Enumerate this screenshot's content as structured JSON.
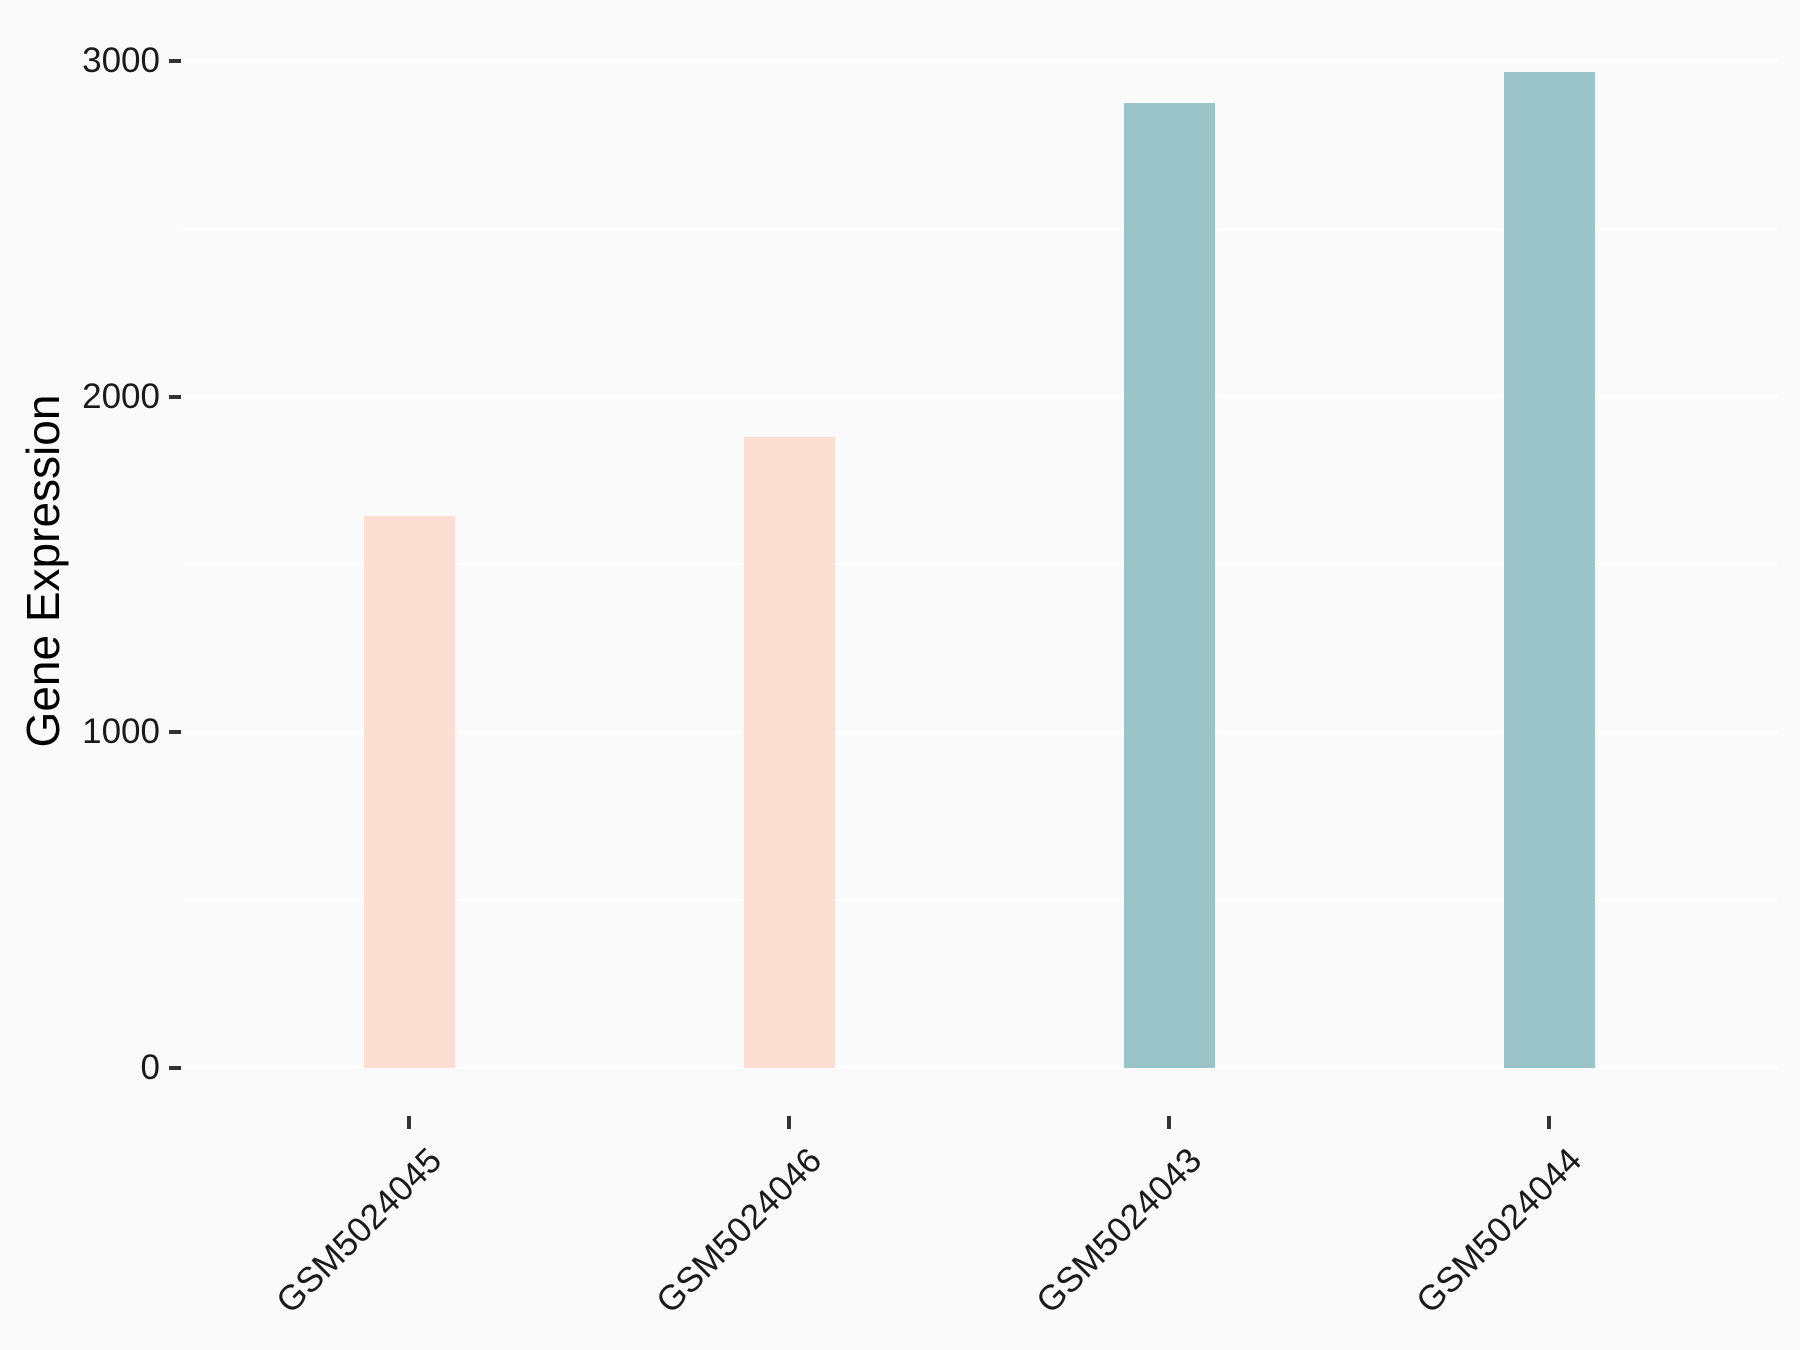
{
  "chart_data": {
    "type": "bar",
    "title": "",
    "xlabel": "",
    "ylabel": "Gene Expression",
    "categories": [
      "GSM5024045",
      "GSM5024046",
      "GSM5024043",
      "GSM5024044"
    ],
    "series": [
      {
        "name": "Gene Expression",
        "values": [
          1645,
          1879,
          2876,
          2968
        ]
      }
    ],
    "bar_colors": [
      "#fcded2",
      "#fcded2",
      "#9ac4c7",
      "#9ac4c7"
    ],
    "group_colors": {
      "pink": "#fcded2",
      "teal": "#9ac4c7"
    },
    "yticks": [
      0,
      1000,
      2000,
      3000
    ],
    "yticks_minor": [
      500,
      1500,
      2500
    ],
    "ylim": [
      -156,
      3116
    ],
    "grid": "on",
    "legend_position": "none",
    "background_color": "#fafafa",
    "gridline_color": "#ffffff",
    "tick_color": "#333333",
    "text_color": "#1a1a1a"
  }
}
